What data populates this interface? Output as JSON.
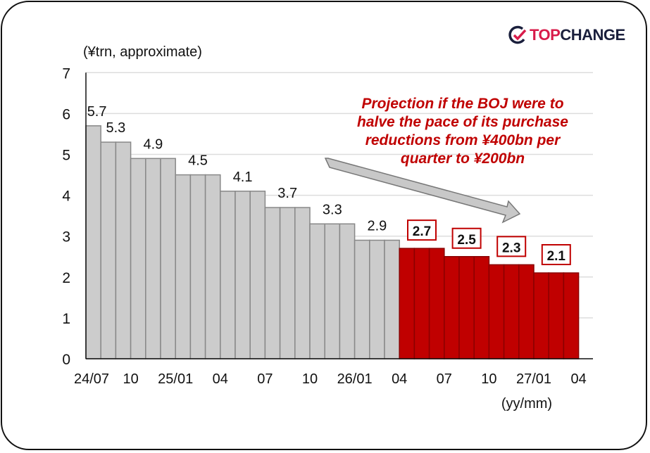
{
  "logo": {
    "top": "TOP",
    "change": "CHANGE"
  },
  "colors": {
    "actual": "#cccccc",
    "projection": "#c00000",
    "annotation": "#c00000",
    "arrow": "#c8c8c8"
  },
  "chart_data": {
    "type": "bar",
    "title": "",
    "ylabel": "(¥trn, approximate)",
    "xlabel": "(yy/mm)",
    "ylim": [
      0,
      7
    ],
    "yticks": [
      0,
      1,
      2,
      3,
      4,
      5,
      6,
      7
    ],
    "grid": true,
    "xtick_labels": [
      "24/07",
      "10",
      "25/01",
      "04",
      "07",
      "10",
      "26/01",
      "04",
      "07",
      "10",
      "27/01",
      "04"
    ],
    "groups": [
      {
        "label": "5.7",
        "value": 5.7,
        "months": 1,
        "projection": false
      },
      {
        "label": "5.3",
        "value": 5.3,
        "months": 2,
        "projection": false
      },
      {
        "label": "4.9",
        "value": 4.9,
        "months": 3,
        "projection": false
      },
      {
        "label": "4.5",
        "value": 4.5,
        "months": 3,
        "projection": false
      },
      {
        "label": "4.1",
        "value": 4.1,
        "months": 3,
        "projection": false
      },
      {
        "label": "3.7",
        "value": 3.7,
        "months": 3,
        "projection": false
      },
      {
        "label": "3.3",
        "value": 3.3,
        "months": 3,
        "projection": false
      },
      {
        "label": "2.9",
        "value": 2.9,
        "months": 3,
        "projection": false
      },
      {
        "label": "2.7",
        "value": 2.7,
        "months": 3,
        "projection": true
      },
      {
        "label": "2.5",
        "value": 2.5,
        "months": 3,
        "projection": true
      },
      {
        "label": "2.3",
        "value": 2.3,
        "months": 3,
        "projection": true
      },
      {
        "label": "2.1",
        "value": 2.1,
        "months": 3,
        "projection": true
      }
    ],
    "annotation": [
      "Projection if the BOJ were to",
      "halve the pace of its purchase",
      "reductions from ¥400bn per",
      "quarter to ¥200bn"
    ]
  }
}
